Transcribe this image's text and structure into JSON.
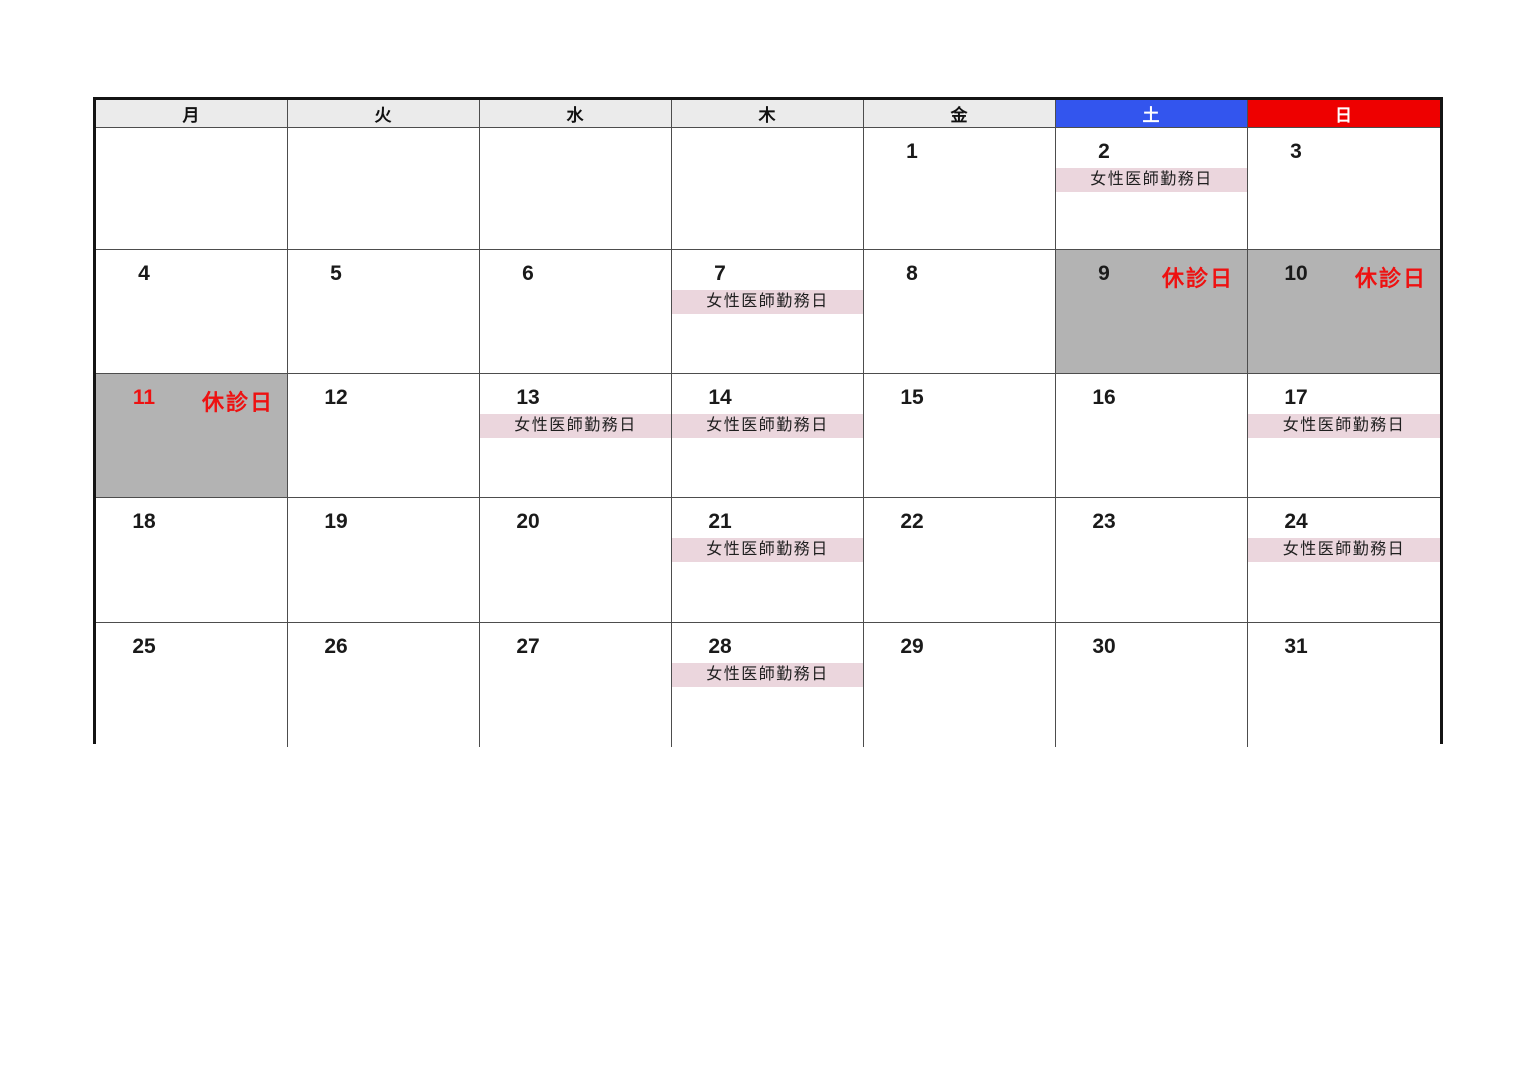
{
  "calendar": {
    "weekday_headers": [
      {
        "label": "月",
        "type": "weekday"
      },
      {
        "label": "火",
        "type": "weekday"
      },
      {
        "label": "水",
        "type": "weekday"
      },
      {
        "label": "木",
        "type": "weekday"
      },
      {
        "label": "金",
        "type": "weekday"
      },
      {
        "label": "土",
        "type": "saturday"
      },
      {
        "label": "日",
        "type": "sunday"
      }
    ],
    "labels": {
      "female_doctor_day": "女性医師勤務日",
      "closed_day": "休診日"
    },
    "colors": {
      "saturday_blue": "#3355ee",
      "sunday_red": "#ee0000",
      "closed_text_red": "#ee1111",
      "closed_cell_gray": "#b3b3b3",
      "event_band_pink": "#ebd6dd",
      "header_gray": "#ebebeb"
    },
    "weeks": [
      [
        {
          "day": ""
        },
        {
          "day": ""
        },
        {
          "day": ""
        },
        {
          "day": ""
        },
        {
          "day": "1"
        },
        {
          "day": "2",
          "female_doctor": true
        },
        {
          "day": "3"
        }
      ],
      [
        {
          "day": "4"
        },
        {
          "day": "5"
        },
        {
          "day": "6"
        },
        {
          "day": "7",
          "female_doctor": true
        },
        {
          "day": "8"
        },
        {
          "day": "9",
          "closed": true
        },
        {
          "day": "10",
          "closed": true
        }
      ],
      [
        {
          "day": "11",
          "closed": true,
          "red_number": true
        },
        {
          "day": "12"
        },
        {
          "day": "13",
          "female_doctor": true
        },
        {
          "day": "14",
          "female_doctor": true
        },
        {
          "day": "15"
        },
        {
          "day": "16"
        },
        {
          "day": "17",
          "female_doctor": true
        }
      ],
      [
        {
          "day": "18"
        },
        {
          "day": "19"
        },
        {
          "day": "20"
        },
        {
          "day": "21",
          "female_doctor": true
        },
        {
          "day": "22"
        },
        {
          "day": "23"
        },
        {
          "day": "24",
          "female_doctor": true
        }
      ],
      [
        {
          "day": "25"
        },
        {
          "day": "26"
        },
        {
          "day": "27"
        },
        {
          "day": "28",
          "female_doctor": true
        },
        {
          "day": "29"
        },
        {
          "day": "30"
        },
        {
          "day": "31"
        }
      ]
    ]
  }
}
